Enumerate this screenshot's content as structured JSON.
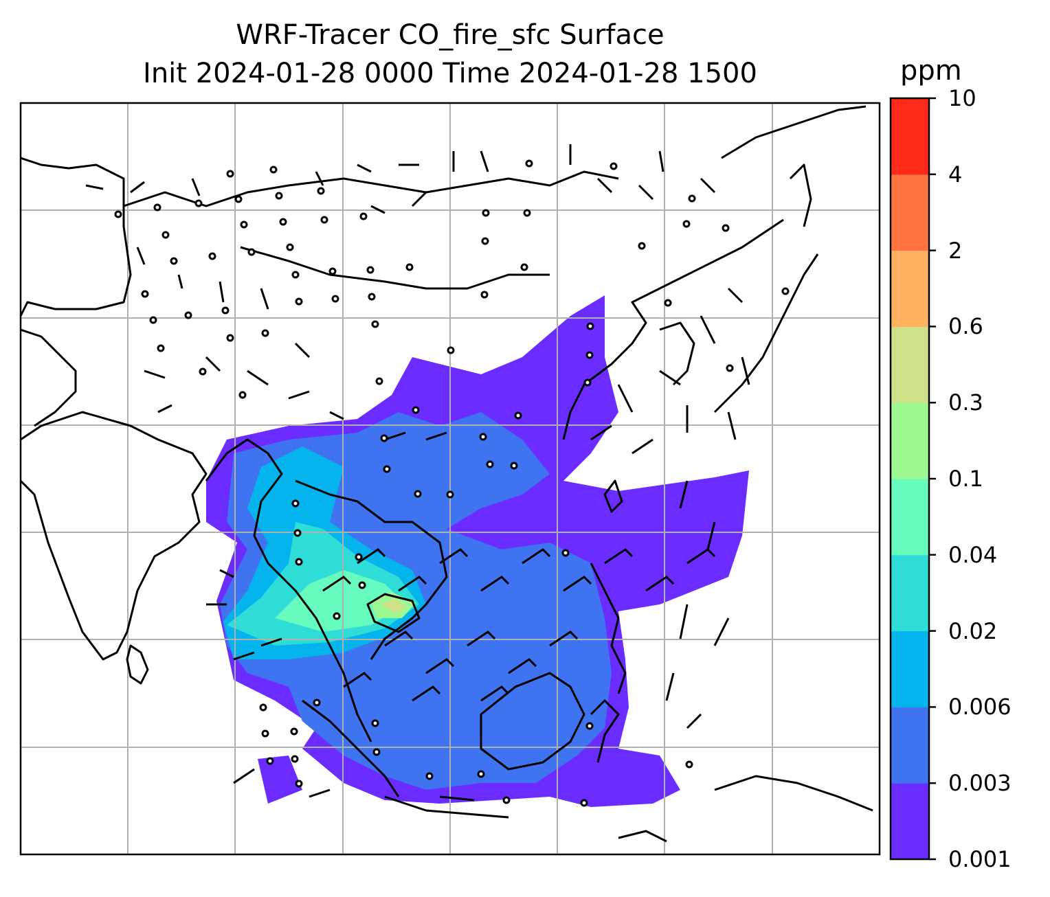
{
  "title": {
    "line1": "WRF-Tracer CO_fire_sfc Surface",
    "line2": "Init 2024-01-28 0000 Time 2024-01-28 1500"
  },
  "colorbar": {
    "unit": "ppm",
    "levels": [
      "0.001",
      "0.003",
      "0.006",
      "0.02",
      "0.04",
      "0.1",
      "0.3",
      "0.6",
      "2",
      "4",
      "10"
    ],
    "colors": [
      "#6a2cff",
      "#3f73f0",
      "#05b4ec",
      "#2fdcd6",
      "#68fbbe",
      "#9ef892",
      "#cfe189",
      "#ffb160",
      "#ff7440",
      "#ff2a1a"
    ]
  },
  "map": {
    "gridline_color": "#b0b0b0",
    "coastline_color": "#000000",
    "field": "CO_fire_sfc",
    "wind_barbs": true
  }
}
